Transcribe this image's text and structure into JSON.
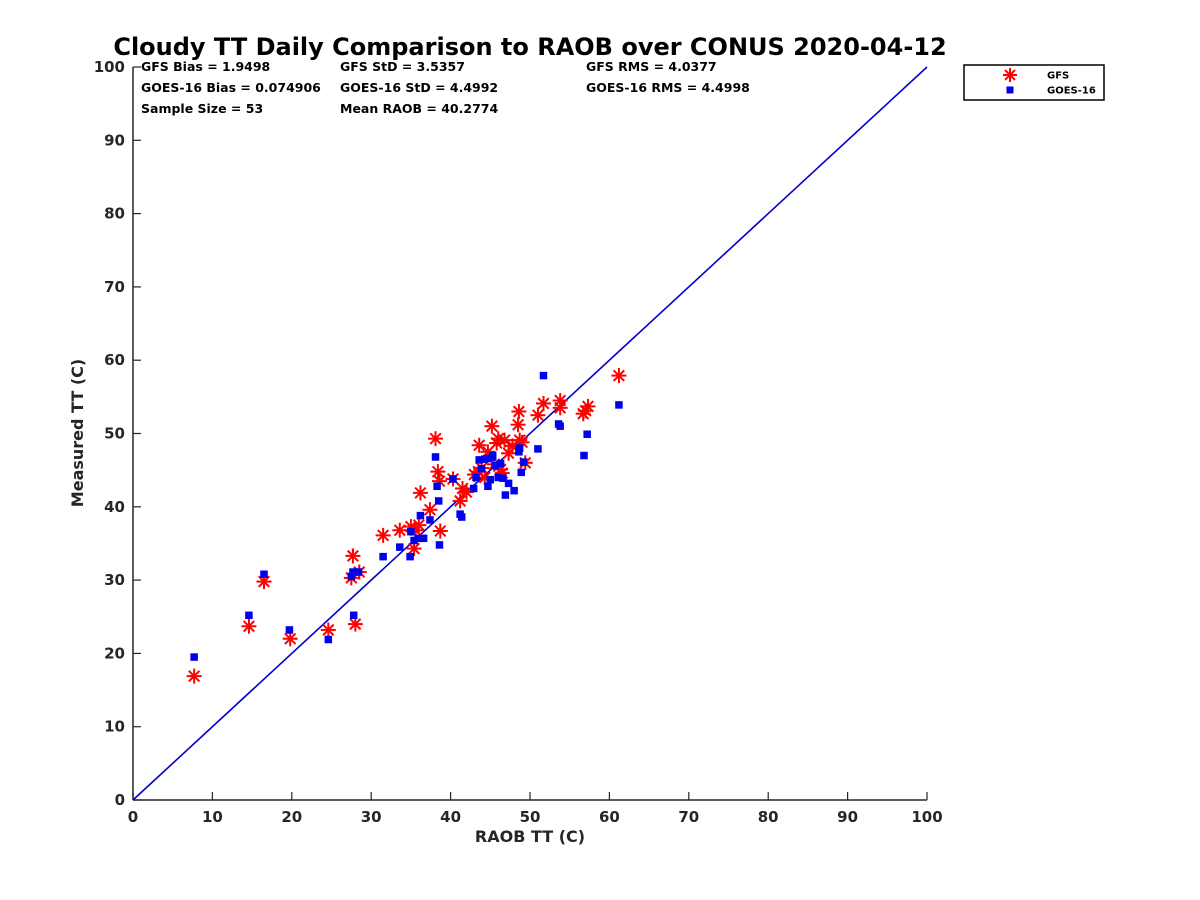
{
  "chart_data": {
    "type": "scatter",
    "title": "Cloudy TT Daily Comparison to RAOB over CONUS 2020-04-12",
    "xlabel": "RAOB TT (C)",
    "ylabel": "Measured TT (C)",
    "xlim": [
      0,
      100
    ],
    "ylim": [
      0,
      100
    ],
    "xticks": [
      "0",
      "10",
      "20",
      "30",
      "40",
      "50",
      "60",
      "70",
      "80",
      "90",
      "100"
    ],
    "yticks": [
      "0",
      "10",
      "20",
      "30",
      "40",
      "50",
      "60",
      "70",
      "80",
      "90",
      "100"
    ],
    "grid": false,
    "legend_position": "top-right outside",
    "reference_line": {
      "x": [
        0,
        100
      ],
      "y": [
        0,
        100
      ],
      "color": "#0000cc"
    },
    "stats": [
      [
        "GFS Bias = 1.9498",
        "GFS StD = 3.5357",
        "GFS RMS = 4.0377"
      ],
      [
        "GOES-16 Bias = 0.074906",
        "GOES-16 StD = 4.4992",
        "GOES-16 RMS = 4.4998"
      ],
      [
        "Sample Size = 53",
        "Mean RAOB = 40.2774",
        ""
      ]
    ],
    "series": [
      {
        "name": "GFS",
        "marker": "asterisk",
        "color": "#ff0000",
        "x": [
          7.7,
          14.6,
          16.5,
          19.8,
          24.6,
          27.5,
          27.7,
          28.0,
          28.5,
          31.5,
          33.6,
          35.0,
          35.4,
          35.6,
          36.0,
          36.2,
          37.4,
          38.1,
          38.4,
          38.6,
          38.7,
          40.3,
          41.2,
          41.5,
          43.0,
          43.6,
          43.9,
          44.3,
          44.7,
          45.2,
          45.5,
          45.8,
          46.0,
          46.3,
          46.5,
          46.8,
          47.3,
          47.8,
          48.5,
          48.6,
          48.7,
          49.0,
          49.4,
          51.0,
          51.7,
          53.8,
          53.8,
          56.7,
          57.0,
          57.3,
          61.2,
          43.5,
          42.0
        ],
        "y": [
          16.9,
          23.7,
          29.8,
          22.0,
          23.2,
          30.3,
          33.3,
          24.0,
          31.1,
          36.1,
          36.8,
          37.3,
          34.3,
          36.8,
          37.5,
          41.9,
          39.6,
          49.3,
          44.8,
          43.5,
          36.7,
          43.8,
          40.8,
          42.5,
          44.4,
          48.4,
          45.3,
          44.0,
          47.5,
          51.0,
          45.8,
          48.7,
          49.3,
          45.1,
          44.6,
          49.1,
          47.3,
          48.3,
          51.2,
          53.0,
          49.1,
          48.8,
          46.0,
          52.5,
          54.1,
          54.5,
          53.5,
          52.7,
          53.1,
          53.7,
          57.9,
          44.8,
          42.0
        ]
      },
      {
        "name": "GOES-16",
        "marker": "square",
        "color": "#0000ee",
        "x": [
          7.7,
          14.6,
          16.5,
          19.7,
          24.6,
          27.5,
          27.7,
          27.8,
          28.4,
          31.5,
          33.6,
          34.9,
          35.0,
          35.4,
          35.9,
          36.2,
          36.6,
          37.4,
          38.1,
          38.3,
          38.5,
          38.6,
          40.3,
          41.2,
          41.4,
          42.9,
          43.2,
          43.6,
          43.9,
          44.3,
          44.7,
          45.0,
          45.3,
          45.6,
          46.0,
          46.3,
          46.6,
          46.9,
          47.3,
          48.0,
          48.6,
          48.7,
          48.9,
          49.2,
          51.0,
          51.7,
          53.6,
          53.8,
          56.8,
          57.2,
          61.2,
          44.8,
          45.3
        ],
        "y": [
          19.5,
          25.2,
          30.8,
          23.2,
          21.9,
          30.5,
          31.1,
          25.2,
          31.1,
          33.2,
          34.5,
          33.2,
          36.6,
          35.4,
          35.7,
          38.8,
          35.7,
          38.2,
          46.8,
          42.8,
          40.8,
          34.8,
          43.8,
          39.0,
          38.6,
          42.5,
          44.0,
          46.4,
          45.2,
          46.5,
          42.8,
          43.7,
          46.8,
          45.6,
          44.0,
          45.9,
          43.9,
          41.6,
          43.2,
          42.2,
          47.5,
          48.0,
          44.7,
          46.1,
          47.9,
          57.9,
          51.3,
          51.0,
          47.0,
          49.9,
          53.9,
          46.6,
          47.0
        ]
      }
    ]
  }
}
